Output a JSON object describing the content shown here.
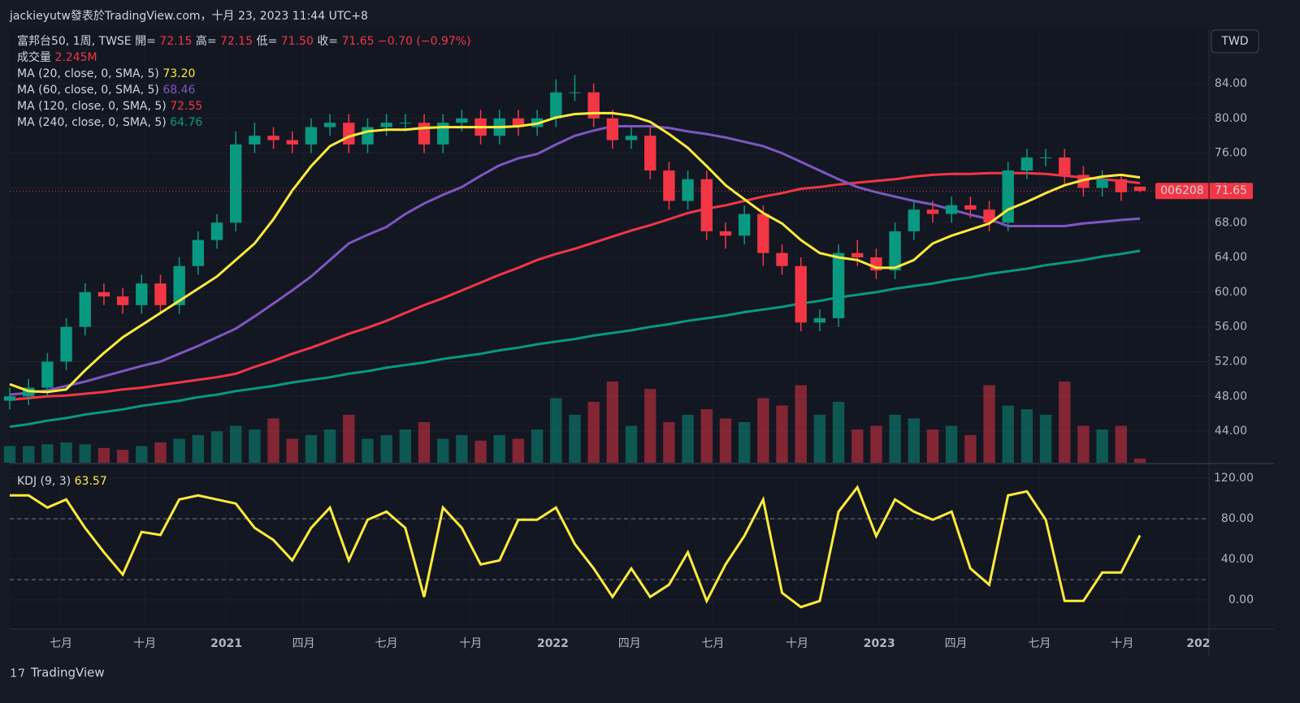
{
  "chart_data": {
    "type": "candlestick",
    "header": "jackieyutw發表於TradingView.com，十月 23, 2023 11:44 UTC+8",
    "footer": "TradingView",
    "currency": "TWD",
    "legend": {
      "symbol": "富邦台50, 1周, TWSE",
      "ohlc": [
        {
          "key": "開=",
          "value": "72.15"
        },
        {
          "key": "高=",
          "value": "72.15"
        },
        {
          "key": "低=",
          "value": "71.50"
        },
        {
          "key": "收=",
          "value": "71.65"
        }
      ],
      "change": "−0.70 (−0.97%)"
    },
    "price_tag": "006208",
    "up_color": "#089981",
    "down_color": "#f23645",
    "x": [
      0,
      3,
      6,
      9,
      12,
      15,
      18,
      21,
      24,
      27,
      30,
      33,
      36,
      39,
      42,
      45,
      48,
      51,
      54,
      57,
      60,
      63,
      66,
      69,
      72,
      75,
      78,
      81,
      84,
      87,
      90,
      93,
      96,
      99,
      102,
      105,
      108,
      111,
      114,
      117,
      120,
      123,
      126,
      129,
      132,
      135,
      138,
      141,
      144,
      147,
      150,
      153,
      156,
      159,
      162,
      165,
      168,
      171,
      174,
      177,
      180
    ],
    "candles": {
      "open": [
        47.5,
        48,
        49,
        52,
        56,
        60,
        59.5,
        58.5,
        61,
        58.5,
        63,
        66,
        68,
        77,
        78,
        77.5,
        77,
        79,
        79.5,
        77,
        79,
        79.5,
        79.5,
        77,
        79.5,
        80,
        78,
        80,
        79,
        80,
        83,
        83,
        80,
        77.5,
        78,
        74,
        70.5,
        73,
        67,
        66.5,
        69,
        64.5,
        63,
        56.5,
        57,
        64.5,
        64,
        62.5,
        67,
        69.5,
        69,
        70,
        69.5,
        68,
        74,
        75.5,
        75.5,
        73.5,
        72,
        73,
        72.15
      ],
      "high": [
        49,
        50,
        53,
        57,
        61,
        61,
        60.5,
        62,
        62,
        64,
        67,
        69,
        78.5,
        79.5,
        79,
        78.5,
        80,
        80.5,
        80.5,
        80,
        80.5,
        80.5,
        80.5,
        80.5,
        81,
        81,
        81,
        81,
        81,
        84.5,
        85,
        84,
        81,
        79,
        79,
        75,
        74,
        74,
        68,
        70,
        70,
        65.5,
        64,
        58,
        65.5,
        66,
        65,
        68,
        70.5,
        70.5,
        71,
        71,
        70.5,
        75,
        76.5,
        76.5,
        76.5,
        74.5,
        74,
        73.5,
        72.15
      ],
      "low": [
        46.5,
        47,
        48,
        51,
        55,
        58.5,
        57.5,
        57.5,
        57.5,
        57.5,
        62,
        65,
        67,
        76,
        76.5,
        76,
        76,
        78,
        76,
        76,
        78,
        78.5,
        76,
        76,
        78.5,
        77,
        77,
        78,
        78,
        79,
        82,
        79,
        76.5,
        76.5,
        73,
        69.5,
        69.5,
        66,
        65,
        65.5,
        63,
        62,
        55.5,
        55.5,
        56,
        63,
        61.5,
        61.5,
        66,
        68,
        68,
        68.5,
        67,
        67,
        73,
        74.5,
        72.5,
        71,
        71,
        70.5,
        71.5
      ],
      "close": [
        48,
        49,
        52,
        56,
        60,
        59.5,
        58.5,
        61,
        58.5,
        63,
        66,
        68,
        77,
        78,
        77.5,
        77,
        79,
        79.5,
        77,
        79,
        79.5,
        79.5,
        77,
        79.5,
        80,
        78,
        80,
        79,
        80,
        83,
        83,
        80,
        77.5,
        78,
        74,
        70.5,
        73,
        67,
        66.5,
        69,
        64.5,
        63,
        56.5,
        57,
        64.5,
        64,
        62.5,
        67,
        69.5,
        69,
        70,
        69.5,
        68,
        74,
        75.5,
        75.5,
        73.5,
        72,
        73,
        71.5,
        71.65
      ]
    },
    "volume": {
      "name": "成交量",
      "value_label": "2.245M",
      "ylim": [
        0,
        66
      ],
      "values": [
        9,
        9,
        10,
        11,
        10,
        8,
        7,
        9,
        11,
        13,
        15,
        17,
        20,
        18,
        24,
        13,
        15,
        18,
        26,
        13,
        15,
        18,
        22,
        13,
        15,
        12,
        15,
        13,
        18,
        35,
        26,
        33,
        44,
        20,
        40,
        22,
        26,
        29,
        24,
        22,
        35,
        31,
        42,
        26,
        33,
        18,
        20,
        26,
        24,
        18,
        20,
        15,
        42,
        31,
        29,
        26,
        44,
        20,
        18,
        20,
        2.245
      ]
    },
    "series": [
      {
        "name": "MA (20, close, 0, SMA, 5)",
        "last_label": "73.20",
        "color": "#ffeb3b",
        "values": [
          49.4,
          48.6,
          48.5,
          48.8,
          51,
          53,
          54.8,
          56.2,
          57.6,
          59,
          60.4,
          61.8,
          63.7,
          65.6,
          68.4,
          71.7,
          74.5,
          76.8,
          77.9,
          78.5,
          78.7,
          78.7,
          78.9,
          79,
          79,
          79,
          79,
          79.1,
          79.4,
          80.1,
          80.5,
          80.6,
          80.6,
          80.3,
          79.6,
          78.2,
          76.6,
          74.5,
          72.3,
          70.7,
          69.1,
          67.9,
          66,
          64.5,
          64,
          63.7,
          62.8,
          62.8,
          63.7,
          65.6,
          66.5,
          67.2,
          67.9,
          69.5,
          70.4,
          71.4,
          72.3,
          72.9,
          73.3,
          73.5,
          73.2
        ]
      },
      {
        "name": "MA (60, close, 0, SMA, 5)",
        "last_label": "68.46",
        "color": "#7e57c2",
        "values": [
          48.2,
          48.4,
          48.7,
          49.2,
          49.7,
          50.3,
          50.9,
          51.5,
          52,
          52.9,
          53.8,
          54.8,
          55.8,
          57.2,
          58.7,
          60.2,
          61.8,
          63.7,
          65.6,
          66.6,
          67.5,
          69,
          70.2,
          71.2,
          72.1,
          73.4,
          74.6,
          75.4,
          75.9,
          77,
          78,
          78.6,
          79.1,
          79.1,
          79.1,
          78.9,
          78.5,
          78.2,
          77.8,
          77.3,
          76.8,
          76,
          75,
          74,
          73,
          72.1,
          71.5,
          71,
          70.5,
          70.1,
          69.5,
          68.9,
          68.4,
          67.6,
          67.6,
          67.6,
          67.6,
          67.9,
          68.1,
          68.3,
          68.46
        ]
      },
      {
        "name": "MA (120, close, 0, SMA, 5)",
        "last_label": "72.55",
        "color": "#f23645",
        "values": [
          47.6,
          47.8,
          48,
          48.1,
          48.3,
          48.5,
          48.8,
          49,
          49.3,
          49.6,
          49.9,
          50.2,
          50.6,
          51.4,
          52.1,
          52.9,
          53.6,
          54.4,
          55.2,
          55.9,
          56.7,
          57.6,
          58.5,
          59.3,
          60.2,
          61.1,
          62,
          62.8,
          63.7,
          64.4,
          65,
          65.7,
          66.4,
          67.1,
          67.7,
          68.4,
          69.1,
          69.6,
          70,
          70.5,
          71,
          71.4,
          71.9,
          72.1,
          72.4,
          72.6,
          72.8,
          73,
          73.3,
          73.5,
          73.6,
          73.6,
          73.7,
          73.7,
          73.7,
          73.6,
          73.4,
          73.2,
          73,
          72.8,
          72.55
        ]
      },
      {
        "name": "MA (240, close, 0, SMA, 5)",
        "last_label": "64.76",
        "color": "#089981",
        "values": [
          44.5,
          44.8,
          45.2,
          45.5,
          45.9,
          46.2,
          46.5,
          46.9,
          47.2,
          47.5,
          47.9,
          48.2,
          48.6,
          48.9,
          49.2,
          49.6,
          49.9,
          50.2,
          50.6,
          50.9,
          51.3,
          51.6,
          51.9,
          52.3,
          52.6,
          52.9,
          53.3,
          53.6,
          54,
          54.3,
          54.6,
          55,
          55.3,
          55.6,
          56,
          56.3,
          56.7,
          57,
          57.3,
          57.7,
          58,
          58.3,
          58.7,
          59,
          59.4,
          59.7,
          60,
          60.4,
          60.7,
          61,
          61.4,
          61.7,
          62.1,
          62.4,
          62.7,
          63.1,
          63.4,
          63.7,
          64.1,
          64.4,
          64.76
        ]
      }
    ],
    "xlim": [
      0,
      191
    ],
    "xticks": [
      {
        "value": 8.15,
        "label": "七月"
      },
      {
        "value": 21.5,
        "label": "十月"
      },
      {
        "value": 34.5,
        "label": "2021"
      },
      {
        "value": 46.8,
        "label": "四月"
      },
      {
        "value": 60,
        "label": "七月"
      },
      {
        "value": 73.4,
        "label": "十月"
      },
      {
        "value": 86.5,
        "label": "2022"
      },
      {
        "value": 98.7,
        "label": "四月"
      },
      {
        "value": 112,
        "label": "七月"
      },
      {
        "value": 125.4,
        "label": "十月"
      },
      {
        "value": 138.5,
        "label": "2023"
      },
      {
        "value": 150.7,
        "label": "四月"
      },
      {
        "value": 164,
        "label": "七月"
      },
      {
        "value": 177.2,
        "label": "十月"
      },
      {
        "value": 189.3,
        "label": "202"
      }
    ],
    "ylim": [
      40.36,
      90.36
    ],
    "yticks": [
      {
        "value": 84,
        "label": "84.00"
      },
      {
        "value": 80,
        "label": "80.00"
      },
      {
        "value": 76,
        "label": "76.00"
      },
      {
        "value": 72,
        "label": "72.00"
      },
      {
        "value": 68,
        "label": "68.00"
      },
      {
        "value": 64,
        "label": "64.00"
      },
      {
        "value": 60,
        "label": "60.00"
      },
      {
        "value": 56,
        "label": "56.00"
      },
      {
        "value": 52,
        "label": "52.00"
      },
      {
        "value": 48,
        "label": "48.00"
      },
      {
        "value": 44,
        "label": "44.00"
      }
    ],
    "kdj": {
      "type": "line",
      "name": "KDJ (9, 3)",
      "color": "#ffeb3b",
      "ylim": [
        -28.8,
        133.6
      ],
      "bands": [
        20,
        80
      ],
      "yticks": [
        {
          "value": 120,
          "label": "120.00"
        },
        {
          "value": 80,
          "label": "80.00"
        },
        {
          "value": 40,
          "label": "40.00"
        },
        {
          "value": 0,
          "label": "0.00"
        }
      ],
      "values": [
        103,
        103,
        91,
        99,
        71,
        47,
        25,
        67,
        64,
        99,
        103,
        99,
        95,
        71,
        59,
        39,
        71,
        91,
        39,
        79,
        87,
        71,
        3,
        91,
        71,
        35,
        39,
        79,
        79,
        91,
        55,
        31,
        3,
        31,
        3,
        15,
        47,
        -1,
        35,
        63,
        99,
        7,
        -7,
        -1,
        87,
        111,
        63,
        99,
        87,
        79,
        87,
        31,
        15,
        103,
        107,
        79,
        -1,
        -1,
        27,
        27,
        63.57
      ]
    }
  }
}
